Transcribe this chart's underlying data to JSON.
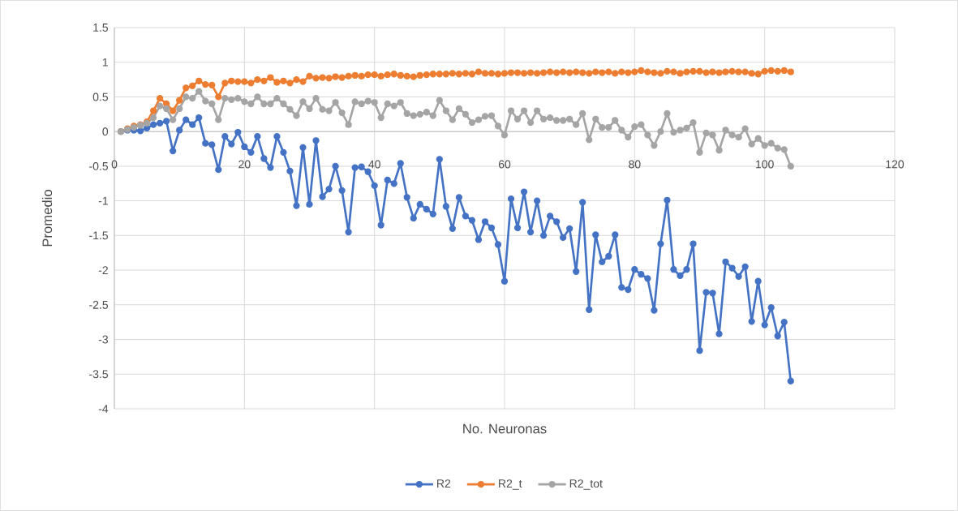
{
  "chart_data": {
    "type": "line",
    "xlabel": "No. Neuronas",
    "ylabel": "Promedio",
    "x": [
      1,
      2,
      3,
      4,
      5,
      6,
      7,
      8,
      9,
      10,
      11,
      12,
      13,
      14,
      15,
      16,
      17,
      18,
      19,
      20,
      21,
      22,
      23,
      24,
      25,
      26,
      27,
      28,
      29,
      30,
      31,
      32,
      33,
      34,
      35,
      36,
      37,
      38,
      39,
      40,
      41,
      42,
      43,
      44,
      45,
      46,
      47,
      48,
      49,
      50,
      51,
      52,
      53,
      54,
      55,
      56,
      57,
      58,
      59,
      60,
      61,
      62,
      63,
      64,
      65,
      66,
      67,
      68,
      69,
      70,
      71,
      72,
      73,
      74,
      75,
      76,
      77,
      78,
      79,
      80,
      81,
      82,
      83,
      84,
      85,
      86,
      87,
      88,
      89,
      90,
      91,
      92,
      93,
      94,
      95,
      96,
      97,
      98,
      99,
      100,
      101,
      102,
      103,
      104
    ],
    "series": [
      {
        "name": "R2",
        "color": "#4472c4",
        "values": [
          0,
          0.02,
          0.02,
          0.01,
          0.05,
          0.1,
          0.12,
          0.15,
          -0.28,
          0.02,
          0.17,
          0.1,
          0.2,
          -0.17,
          -0.19,
          -0.55,
          -0.07,
          -0.18,
          -0.01,
          -0.22,
          -0.3,
          -0.07,
          -0.39,
          -0.52,
          -0.07,
          -0.3,
          -0.57,
          -1.07,
          -0.23,
          -1.05,
          -0.13,
          -0.94,
          -0.83,
          -0.5,
          -0.85,
          -1.45,
          -0.52,
          -0.51,
          -0.58,
          -0.78,
          -1.35,
          -0.7,
          -0.75,
          -0.46,
          -0.95,
          -1.25,
          -1.05,
          -1.12,
          -1.19,
          -0.4,
          -1.08,
          -1.4,
          -0.95,
          -1.22,
          -1.28,
          -1.56,
          -1.3,
          -1.39,
          -1.63,
          -2.16,
          -0.97,
          -1.39,
          -0.87,
          -1.45,
          -1.0,
          -1.5,
          -1.22,
          -1.3,
          -1.53,
          -1.4,
          -2.02,
          -1.02,
          -2.57,
          -1.49,
          -1.88,
          -1.8,
          -1.49,
          -2.25,
          -2.28,
          -1.99,
          -2.06,
          -2.12,
          -2.58,
          -1.62,
          -0.99,
          -1.99,
          -2.08,
          -1.99,
          -1.62,
          -3.16,
          -2.32,
          -2.33,
          -2.92,
          -1.88,
          -1.97,
          -2.09,
          -1.95,
          -2.74,
          -2.16,
          -2.79,
          -2.54,
          -2.95,
          -2.75,
          -3.6
        ]
      },
      {
        "name": "R2_t",
        "color": "#ed7d31",
        "values": [
          0,
          0.04,
          0.08,
          0.1,
          0.14,
          0.3,
          0.48,
          0.4,
          0.3,
          0.45,
          0.63,
          0.66,
          0.73,
          0.68,
          0.67,
          0.5,
          0.7,
          0.73,
          0.72,
          0.72,
          0.7,
          0.75,
          0.73,
          0.78,
          0.71,
          0.73,
          0.7,
          0.75,
          0.72,
          0.8,
          0.77,
          0.78,
          0.77,
          0.79,
          0.78,
          0.8,
          0.81,
          0.8,
          0.82,
          0.82,
          0.8,
          0.82,
          0.83,
          0.81,
          0.8,
          0.79,
          0.81,
          0.82,
          0.83,
          0.83,
          0.83,
          0.84,
          0.83,
          0.84,
          0.83,
          0.86,
          0.84,
          0.84,
          0.83,
          0.84,
          0.85,
          0.85,
          0.84,
          0.85,
          0.84,
          0.85,
          0.86,
          0.85,
          0.86,
          0.85,
          0.86,
          0.85,
          0.84,
          0.86,
          0.85,
          0.86,
          0.84,
          0.86,
          0.85,
          0.86,
          0.88,
          0.86,
          0.85,
          0.84,
          0.87,
          0.86,
          0.84,
          0.86,
          0.87,
          0.87,
          0.85,
          0.86,
          0.85,
          0.86,
          0.87,
          0.86,
          0.86,
          0.84,
          0.83,
          0.87,
          0.88,
          0.87,
          0.88,
          0.86
        ]
      },
      {
        "name": "R2_tot",
        "color": "#a5a5a5",
        "values": [
          0,
          0.03,
          0.06,
          0.09,
          0.12,
          0.2,
          0.37,
          0.33,
          0.17,
          0.33,
          0.5,
          0.48,
          0.58,
          0.44,
          0.4,
          0.17,
          0.48,
          0.46,
          0.48,
          0.43,
          0.4,
          0.5,
          0.4,
          0.4,
          0.48,
          0.4,
          0.32,
          0.23,
          0.43,
          0.33,
          0.48,
          0.32,
          0.3,
          0.42,
          0.27,
          0.1,
          0.43,
          0.4,
          0.44,
          0.42,
          0.2,
          0.4,
          0.37,
          0.42,
          0.26,
          0.23,
          0.25,
          0.28,
          0.23,
          0.45,
          0.3,
          0.17,
          0.33,
          0.25,
          0.13,
          0.17,
          0.22,
          0.23,
          0.08,
          -0.05,
          0.3,
          0.18,
          0.3,
          0.13,
          0.3,
          0.18,
          0.2,
          0.16,
          0.16,
          0.18,
          0.1,
          0.26,
          -0.12,
          0.18,
          0.06,
          0.06,
          0.16,
          0.02,
          -0.08,
          0.07,
          0.1,
          -0.05,
          -0.2,
          0.0,
          0.26,
          -0.01,
          0.02,
          0.05,
          0.13,
          -0.3,
          -0.02,
          -0.05,
          -0.27,
          0.02,
          -0.05,
          -0.08,
          0.04,
          -0.18,
          -0.1,
          -0.2,
          -0.17,
          -0.24,
          -0.26,
          -0.5
        ]
      }
    ],
    "xlim": [
      0,
      120
    ],
    "xticks": [
      0,
      20,
      40,
      60,
      80,
      100,
      120
    ],
    "ylim": [
      -4,
      1.5
    ],
    "yticks": [
      -4,
      -3.5,
      -3,
      -2.5,
      -2,
      -1.5,
      -1,
      -0.5,
      0,
      0.5,
      1,
      1.5
    ],
    "grid": true,
    "legend": "bottom",
    "marker": "circle",
    "line_style": "solid"
  }
}
